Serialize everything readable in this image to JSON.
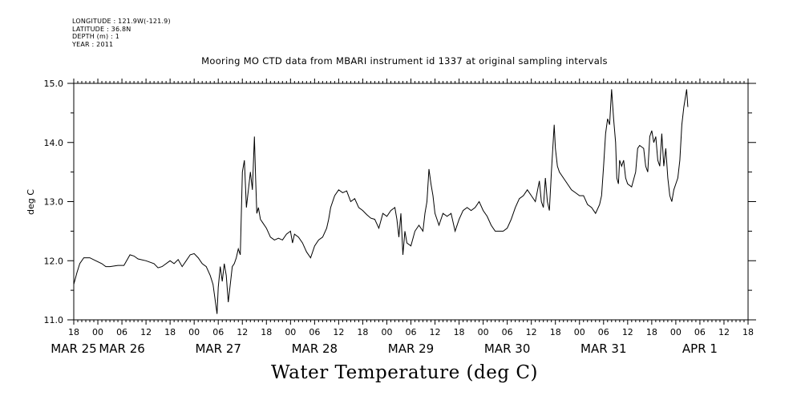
{
  "meta": {
    "longitude": "LONGITUDE : 121.9W(-121.9)",
    "latitude": "LATITUDE : 36.8N",
    "depth": "DEPTH (m) : 1",
    "year": "YEAR : 2011"
  },
  "chart_data": {
    "type": "line",
    "title": "Mooring MO CTD data from MBARI instrument id 1337 at original sampling intervals",
    "xlabel": "Water Temperature (deg C)",
    "ylabel": "deg C",
    "ylim": [
      11.0,
      15.0
    ],
    "y_ticks": [
      "11.0",
      "12.0",
      "13.0",
      "14.0",
      "15.0"
    ],
    "xlim_hours": [
      0,
      168
    ],
    "x_ticks": [
      "18",
      "00",
      "06",
      "12",
      "18",
      "00",
      "06",
      "12",
      "18",
      "00",
      "06",
      "12",
      "18",
      "00",
      "06",
      "12",
      "18",
      "00",
      "06",
      "12",
      "18",
      "00",
      "06",
      "12",
      "18",
      "00",
      "06",
      "12",
      "18"
    ],
    "x_dates": [
      {
        "label": "MAR 25",
        "hour": 0
      },
      {
        "label": "MAR 26",
        "hour": 12
      },
      {
        "label": "MAR 27",
        "hour": 36
      },
      {
        "label": "MAR 28",
        "hour": 60
      },
      {
        "label": "MAR 29",
        "hour": 84
      },
      {
        "label": "MAR 30",
        "hour": 108
      },
      {
        "label": "MAR 31",
        "hour": 132
      },
      {
        "label": "APR  1",
        "hour": 156
      }
    ],
    "x_reference": "hours after 2011-03-25 18:00",
    "grid": false,
    "series": [
      {
        "values": [
          [
            0,
            11.6
          ],
          [
            0.8,
            11.8
          ],
          [
            1.5,
            11.95
          ],
          [
            2.5,
            12.05
          ],
          [
            4,
            12.05
          ],
          [
            5.5,
            12.0
          ],
          [
            7,
            11.95
          ],
          [
            8,
            11.9
          ],
          [
            9,
            11.9
          ],
          [
            11,
            11.92
          ],
          [
            12.5,
            11.92
          ],
          [
            14,
            12.1
          ],
          [
            15,
            12.08
          ],
          [
            16,
            12.03
          ],
          [
            18,
            12.0
          ],
          [
            20,
            11.95
          ],
          [
            21,
            11.88
          ],
          [
            22,
            11.9
          ],
          [
            24,
            12.0
          ],
          [
            25,
            11.95
          ],
          [
            26,
            12.02
          ],
          [
            27,
            11.9
          ],
          [
            28,
            12.0
          ],
          [
            29,
            12.1
          ],
          [
            30,
            12.12
          ],
          [
            31,
            12.05
          ],
          [
            32,
            11.95
          ],
          [
            33,
            11.9
          ],
          [
            34,
            11.75
          ],
          [
            34.7,
            11.6
          ],
          [
            35.3,
            11.3
          ],
          [
            35.7,
            11.1
          ],
          [
            36,
            11.55
          ],
          [
            36.5,
            11.9
          ],
          [
            37,
            11.65
          ],
          [
            37.5,
            11.95
          ],
          [
            38,
            11.75
          ],
          [
            38.5,
            11.3
          ],
          [
            39,
            11.6
          ],
          [
            39.5,
            11.9
          ],
          [
            40,
            11.95
          ],
          [
            40.5,
            12.05
          ],
          [
            41,
            12.2
          ],
          [
            41.5,
            12.1
          ],
          [
            42,
            13.5
          ],
          [
            42.5,
            13.7
          ],
          [
            43,
            12.9
          ],
          [
            43.5,
            13.2
          ],
          [
            44,
            13.5
          ],
          [
            44.5,
            13.2
          ],
          [
            45,
            14.1
          ],
          [
            45.3,
            13.4
          ],
          [
            45.6,
            12.8
          ],
          [
            46,
            12.9
          ],
          [
            46.5,
            12.7
          ],
          [
            47,
            12.65
          ],
          [
            48,
            12.55
          ],
          [
            49,
            12.4
          ],
          [
            50,
            12.35
          ],
          [
            51,
            12.38
          ],
          [
            52,
            12.35
          ],
          [
            53,
            12.45
          ],
          [
            54,
            12.5
          ],
          [
            54.5,
            12.3
          ],
          [
            55,
            12.45
          ],
          [
            56,
            12.4
          ],
          [
            57,
            12.3
          ],
          [
            58,
            12.15
          ],
          [
            59,
            12.05
          ],
          [
            60,
            12.25
          ],
          [
            61,
            12.35
          ],
          [
            62,
            12.4
          ],
          [
            63,
            12.55
          ],
          [
            63.5,
            12.7
          ],
          [
            64,
            12.9
          ],
          [
            65,
            13.1
          ],
          [
            66,
            13.2
          ],
          [
            67,
            13.15
          ],
          [
            68,
            13.18
          ],
          [
            69,
            13.0
          ],
          [
            70,
            13.05
          ],
          [
            71,
            12.9
          ],
          [
            72,
            12.85
          ],
          [
            73,
            12.78
          ],
          [
            74,
            12.72
          ],
          [
            75,
            12.7
          ],
          [
            76,
            12.55
          ],
          [
            77,
            12.8
          ],
          [
            78,
            12.75
          ],
          [
            79,
            12.85
          ],
          [
            80,
            12.9
          ],
          [
            80.5,
            12.7
          ],
          [
            81,
            12.4
          ],
          [
            81.5,
            12.8
          ],
          [
            82,
            12.1
          ],
          [
            82.5,
            12.5
          ],
          [
            83,
            12.3
          ],
          [
            84,
            12.25
          ],
          [
            85,
            12.5
          ],
          [
            86,
            12.6
          ],
          [
            87,
            12.5
          ],
          [
            87.5,
            12.8
          ],
          [
            88,
            13.0
          ],
          [
            88.5,
            13.55
          ],
          [
            89,
            13.3
          ],
          [
            89.5,
            13.1
          ],
          [
            90,
            12.8
          ],
          [
            91,
            12.6
          ],
          [
            92,
            12.8
          ],
          [
            93,
            12.75
          ],
          [
            94,
            12.8
          ],
          [
            95,
            12.5
          ],
          [
            96,
            12.7
          ],
          [
            97,
            12.85
          ],
          [
            98,
            12.9
          ],
          [
            99,
            12.85
          ],
          [
            100,
            12.9
          ],
          [
            101,
            13.0
          ],
          [
            102,
            12.85
          ],
          [
            103,
            12.75
          ],
          [
            104,
            12.6
          ],
          [
            105,
            12.5
          ],
          [
            106,
            12.5
          ],
          [
            107,
            12.5
          ],
          [
            108,
            12.55
          ],
          [
            109,
            12.7
          ],
          [
            110,
            12.9
          ],
          [
            111,
            13.05
          ],
          [
            112,
            13.1
          ],
          [
            113,
            13.2
          ],
          [
            114,
            13.1
          ],
          [
            115,
            13.0
          ],
          [
            116,
            13.35
          ],
          [
            116.5,
            13.0
          ],
          [
            117,
            12.9
          ],
          [
            117.5,
            13.4
          ],
          [
            118,
            13.0
          ],
          [
            118.5,
            12.85
          ],
          [
            119,
            13.5
          ],
          [
            119.7,
            14.3
          ],
          [
            120,
            13.9
          ],
          [
            120.5,
            13.6
          ],
          [
            121,
            13.5
          ],
          [
            122,
            13.4
          ],
          [
            123,
            13.3
          ],
          [
            124,
            13.2
          ],
          [
            125,
            13.15
          ],
          [
            126,
            13.1
          ],
          [
            127,
            13.1
          ],
          [
            128,
            12.95
          ],
          [
            129,
            12.9
          ],
          [
            130,
            12.8
          ],
          [
            131,
            12.95
          ],
          [
            131.5,
            13.1
          ],
          [
            132,
            13.6
          ],
          [
            132.5,
            14.15
          ],
          [
            133,
            14.4
          ],
          [
            133.5,
            14.3
          ],
          [
            134,
            14.9
          ],
          [
            134.5,
            14.4
          ],
          [
            135,
            14.0
          ],
          [
            135.3,
            13.4
          ],
          [
            135.7,
            13.3
          ],
          [
            136,
            13.7
          ],
          [
            136.5,
            13.6
          ],
          [
            137,
            13.7
          ],
          [
            137.5,
            13.4
          ],
          [
            138,
            13.3
          ],
          [
            139,
            13.25
          ],
          [
            140,
            13.5
          ],
          [
            140.5,
            13.9
          ],
          [
            141,
            13.95
          ],
          [
            142,
            13.9
          ],
          [
            142.5,
            13.6
          ],
          [
            143,
            13.5
          ],
          [
            143.5,
            14.1
          ],
          [
            144,
            14.2
          ],
          [
            144.5,
            14.0
          ],
          [
            145,
            14.1
          ],
          [
            145.5,
            13.7
          ],
          [
            146,
            13.6
          ],
          [
            146.5,
            14.15
          ],
          [
            147,
            13.6
          ],
          [
            147.5,
            13.9
          ],
          [
            148,
            13.4
          ],
          [
            148.5,
            13.1
          ],
          [
            149,
            13.0
          ],
          [
            149.5,
            13.2
          ],
          [
            150,
            13.3
          ],
          [
            150.5,
            13.4
          ],
          [
            151,
            13.7
          ],
          [
            151.5,
            14.3
          ],
          [
            152,
            14.6
          ],
          [
            152.7,
            14.9
          ],
          [
            153,
            14.6
          ]
        ]
      }
    ]
  }
}
